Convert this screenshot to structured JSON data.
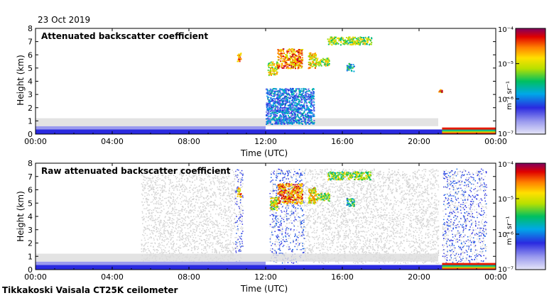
{
  "date": "23 Oct 2019",
  "footer": "Tikkakoski Vaisala CT25K ceilometer",
  "chart_data": [
    {
      "type": "heatmap",
      "title": "Attenuated backscatter coefficient",
      "xlabel": "Time (UTC)",
      "ylabel": "Height (km)",
      "x_ticks": [
        "00:00",
        "04:00",
        "08:00",
        "12:00",
        "16:00",
        "20:00",
        "00:00"
      ],
      "y_ticks": [
        "0",
        "1",
        "2",
        "3",
        "4",
        "5",
        "6",
        "7",
        "8"
      ],
      "ylim": [
        0,
        8
      ],
      "colorbar": {
        "label": "m⁻¹ sr⁻¹",
        "scale": "log",
        "ticks": [
          "10⁻⁴",
          "10⁻⁵",
          "10⁻⁶",
          "10⁻⁷"
        ]
      },
      "layers": [
        {
          "t0": 0,
          "t1": 24,
          "h0": 0,
          "h1": 0.35,
          "level": 0.25
        },
        {
          "t0": 0,
          "t1": 12,
          "h0": 0.35,
          "h1": 0.6,
          "level": 0.12
        },
        {
          "t0": 0,
          "t1": 21,
          "h0": 0.6,
          "h1": 1.2,
          "level": 0.02
        },
        {
          "t0": 21.2,
          "t1": 24,
          "h0": 0,
          "h1": 0.5,
          "level": 0.9
        }
      ],
      "clouds": [
        {
          "t0": 10.5,
          "t1": 10.7,
          "h0": 5.5,
          "h1": 6.2,
          "level": 0.75
        },
        {
          "t0": 12.1,
          "t1": 12.6,
          "h0": 4.5,
          "h1": 5.5,
          "level": 0.65
        },
        {
          "t0": 12.6,
          "t1": 13.9,
          "h0": 5.0,
          "h1": 6.5,
          "level": 0.8
        },
        {
          "t0": 14.2,
          "t1": 14.6,
          "h0": 5.0,
          "h1": 6.2,
          "level": 0.7
        },
        {
          "t0": 14.6,
          "t1": 15.3,
          "h0": 5.2,
          "h1": 5.8,
          "level": 0.6
        },
        {
          "t0": 15.2,
          "t1": 17.5,
          "h0": 6.8,
          "h1": 7.4,
          "level": 0.6
        },
        {
          "t0": 16.2,
          "t1": 16.6,
          "h0": 4.8,
          "h1": 5.4,
          "level": 0.45
        },
        {
          "t0": 21.0,
          "t1": 21.2,
          "h0": 3.2,
          "h1": 3.4,
          "level": 0.8
        },
        {
          "t0": 12.0,
          "t1": 14.5,
          "h0": 0.8,
          "h1": 3.5,
          "level": 0.3
        }
      ]
    },
    {
      "type": "heatmap",
      "title": "Raw attenuated backscatter coefficient",
      "xlabel": "Time (UTC)",
      "ylabel": "Height (km)",
      "x_ticks": [
        "00:00",
        "04:00",
        "08:00",
        "12:00",
        "16:00",
        "20:00",
        "00:00"
      ],
      "y_ticks": [
        "0",
        "1",
        "2",
        "3",
        "4",
        "5",
        "6",
        "7",
        "8"
      ],
      "ylim": [
        0,
        8
      ],
      "colorbar": {
        "label": "m⁻¹ sr⁻¹",
        "scale": "log",
        "ticks": [
          "10⁻⁴",
          "10⁻⁵",
          "10⁻⁶",
          "10⁻⁷"
        ]
      },
      "layers": [
        {
          "t0": 0,
          "t1": 24,
          "h0": 0,
          "h1": 0.35,
          "level": 0.25
        },
        {
          "t0": 0,
          "t1": 12,
          "h0": 0.35,
          "h1": 0.6,
          "level": 0.12
        },
        {
          "t0": 0,
          "t1": 21,
          "h0": 0.6,
          "h1": 1.2,
          "level": 0.02
        },
        {
          "t0": 21.2,
          "t1": 24,
          "h0": 0,
          "h1": 0.5,
          "level": 0.9
        }
      ],
      "noise": [
        {
          "t0": 5.5,
          "t1": 10.4,
          "h0": 0.5,
          "h1": 7.6,
          "level": 0.0
        },
        {
          "t0": 10.4,
          "t1": 10.8,
          "h0": 0.5,
          "h1": 7.6,
          "level": 0.2
        },
        {
          "t0": 12.2,
          "t1": 14.0,
          "h0": 0.5,
          "h1": 7.6,
          "level": 0.22
        },
        {
          "t0": 14.0,
          "t1": 21.0,
          "h0": 0.5,
          "h1": 7.6,
          "level": 0.0
        },
        {
          "t0": 21.2,
          "t1": 23.5,
          "h0": 0.5,
          "h1": 7.6,
          "level": 0.22
        }
      ],
      "clouds": [
        {
          "t0": 10.5,
          "t1": 10.7,
          "h0": 5.5,
          "h1": 6.2,
          "level": 0.75
        },
        {
          "t0": 12.2,
          "t1": 12.6,
          "h0": 4.5,
          "h1": 5.5,
          "level": 0.65
        },
        {
          "t0": 12.6,
          "t1": 13.9,
          "h0": 5.0,
          "h1": 6.5,
          "level": 0.8
        },
        {
          "t0": 14.2,
          "t1": 14.6,
          "h0": 5.0,
          "h1": 6.2,
          "level": 0.7
        },
        {
          "t0": 14.6,
          "t1": 15.3,
          "h0": 5.2,
          "h1": 5.8,
          "level": 0.6
        },
        {
          "t0": 15.2,
          "t1": 17.5,
          "h0": 6.8,
          "h1": 7.4,
          "level": 0.6
        },
        {
          "t0": 16.2,
          "t1": 16.6,
          "h0": 4.8,
          "h1": 5.4,
          "level": 0.45
        }
      ]
    }
  ]
}
